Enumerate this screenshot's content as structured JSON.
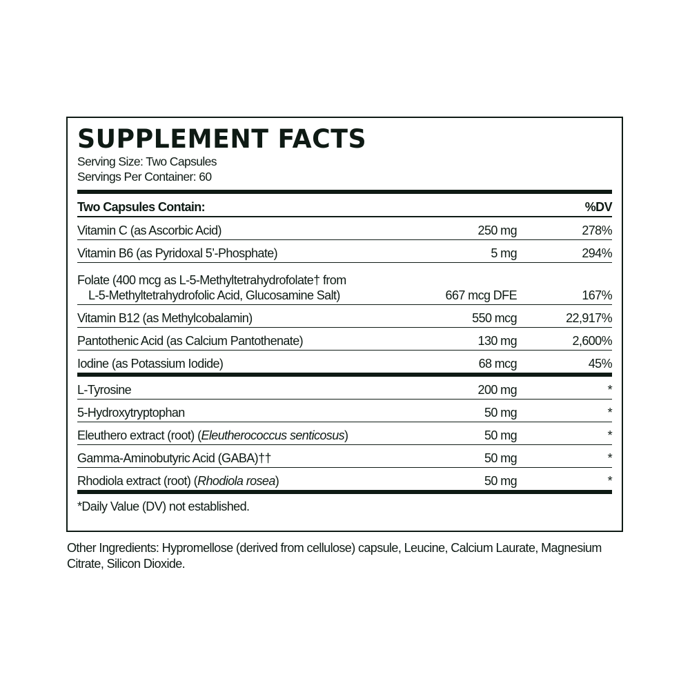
{
  "title": "SUPPLEMENT FACTS",
  "serving_size": "Serving Size: Two Capsules",
  "servings_per_container": "Servings Per Container: 60",
  "header": {
    "label": "Two Capsules Contain:",
    "dv": "%DV"
  },
  "vitamins": [
    {
      "name": "Vitamin C (as Ascorbic Acid)",
      "amount": "250 mg",
      "dv": "278%"
    },
    {
      "name": "Vitamin B6 (as Pyridoxal 5’-Phosphate)",
      "amount": "5 mg",
      "dv": "294%"
    },
    {
      "name": "Folate (400 mcg as L-5-Methyltetrahydrofolate† from",
      "name_line2": "L-5-Methyltetrahydrofolic Acid, Glucosamine Salt)",
      "amount": "667 mcg DFE",
      "dv": "167%"
    },
    {
      "name": "Vitamin B12 (as Methylcobalamin)",
      "amount": "550 mcg",
      "dv": "22,917%"
    },
    {
      "name": "Pantothenic Acid (as Calcium Pantothenate)",
      "amount": "130 mg",
      "dv": "2,600%"
    },
    {
      "name": "Iodine (as Potassium Iodide)",
      "amount": "68 mcg",
      "dv": "45%"
    }
  ],
  "others": [
    {
      "name": "L-Tyrosine",
      "amount": "200 mg",
      "dv": "*"
    },
    {
      "name": "5-Hydroxytryptophan",
      "amount": "50 mg",
      "dv": "*"
    },
    {
      "name": "Eleuthero extract (root) (",
      "italic": "Eleutherococcus senticosus",
      "close": ")",
      "amount": "50 mg",
      "dv": "*"
    },
    {
      "name": "Gamma-Aminobutyric Acid (GABA)††",
      "amount": "50 mg",
      "dv": "*"
    },
    {
      "name": "Rhodiola extract (root) (",
      "italic": "Rhodiola rosea",
      "close": ")",
      "amount": "50 mg",
      "dv": "*"
    }
  ],
  "footnote": "*Daily Value (DV) not established.",
  "other_ingredients": "Other Ingredients: Hypromellose (derived from cellulose) capsule, Leucine, Calcium Laurate, Magnesium Citrate, Silicon Dioxide.",
  "colors": {
    "ink": "#0e1a14"
  }
}
